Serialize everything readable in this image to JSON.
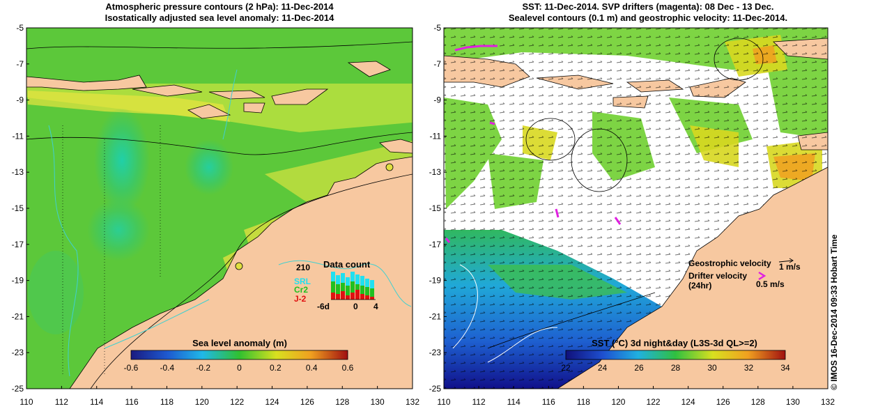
{
  "left_panel": {
    "title_line1": "Atmospheric pressure contours (2 hPa): 11-Dec-2014",
    "title_line2": "Isostatically adjusted sea level anomaly: 11-Dec-2014",
    "y_ticks": [
      "-5",
      "-7",
      "-9",
      "-11",
      "-13",
      "-15",
      "-17",
      "-19",
      "-21",
      "-23",
      "-25"
    ],
    "x_ticks": [
      "110",
      "112",
      "114",
      "116",
      "118",
      "120",
      "122",
      "124",
      "126",
      "128",
      "130",
      "132"
    ],
    "colorbar": {
      "title": "Sea level anomaly (m)",
      "ticks": [
        "-0.6",
        "-0.4",
        "-0.2",
        "0",
        "0.2",
        "0.4",
        "0.6"
      ],
      "range": [
        -0.6,
        0.6
      ]
    },
    "data_count": {
      "title": "Data count",
      "max_label": "210",
      "x_ticks": [
        "-6d",
        "0",
        "4"
      ],
      "legend": [
        "SRL",
        "Cr2",
        "J-2"
      ],
      "legend_colors": [
        "#20e0f0",
        "#20c020",
        "#e01010"
      ]
    }
  },
  "right_panel": {
    "title_line1": "SST: 11-Dec-2014. SVP drifters (magenta): 08 Dec - 13 Dec.",
    "title_line2": "Sealevel contours (0.1 m) and geostrophic velocity: 11-Dec-2014.",
    "y_ticks": [
      "-5",
      "-7",
      "-9",
      "-11",
      "-13",
      "-15",
      "-17",
      "-19",
      "-21",
      "-23",
      "-25"
    ],
    "x_ticks": [
      "110",
      "112",
      "114",
      "116",
      "118",
      "120",
      "122",
      "124",
      "126",
      "128",
      "130",
      "132"
    ],
    "colorbar": {
      "title": "SST (°C) 3d night&day (L3S-3d QL>=2)",
      "ticks": [
        "22",
        "24",
        "26",
        "28",
        "30",
        "32",
        "34"
      ],
      "range": [
        22,
        34
      ]
    },
    "legend": {
      "geostrophic_label": "Geostrophic velocity",
      "geostrophic_scale": "1 m/s",
      "drifter_label_line1": "Drifter velocity",
      "drifter_label_line2": "(24hr)",
      "drifter_scale": "0.5 m/s"
    }
  },
  "credit": "© IMOS 16-Dec-2014 09:33 Hobart Time",
  "colors": {
    "land": "#f7c8a0",
    "coast_contour": "#40d0d0",
    "drifter": "#e020e0"
  }
}
